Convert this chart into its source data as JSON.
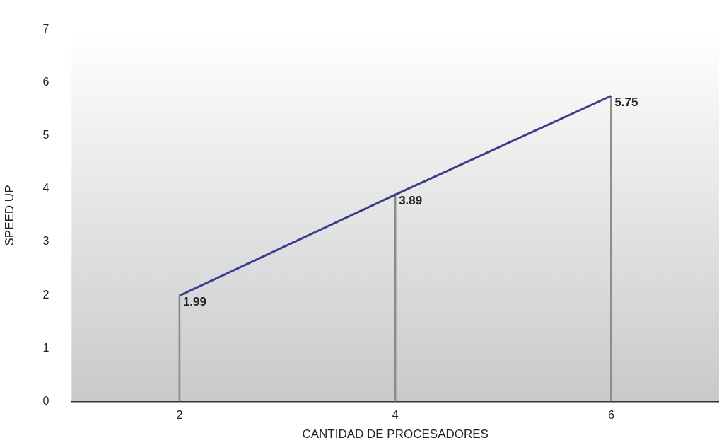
{
  "chart_data": {
    "type": "line",
    "xlabel": "CANTIDAD DE PROCESADORES",
    "ylabel": "SPEED UP",
    "categories": [
      "2",
      "4",
      "6"
    ],
    "series": [
      {
        "type": "bar",
        "color": "#8c8c8c",
        "values": [
          1.99,
          3.89,
          5.75
        ]
      },
      {
        "color": "#3c3c8c",
        "values": [
          1.99,
          3.89,
          5.75
        ],
        "value_labels": [
          "1.99",
          "3.89",
          "5.75"
        ]
      }
    ],
    "ylim": [
      0,
      7
    ],
    "yticks": [
      0,
      1,
      2,
      3,
      4,
      5,
      6,
      7
    ],
    "grid": false,
    "legend": false,
    "marker": "none",
    "line_style": "solid"
  }
}
